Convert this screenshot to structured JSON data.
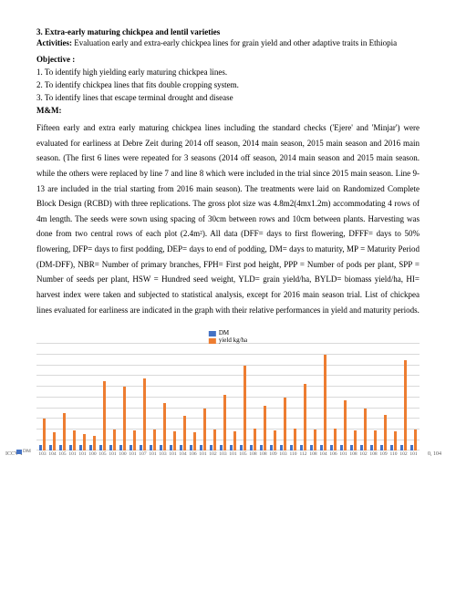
{
  "heading": "3. Extra-early maturing chickpea and lentil varieties",
  "activities_label": "Activities:",
  "activities_text": " Evaluation early and extra-early chickpea lines for grain yield and other adaptive traits in Ethiopia",
  "objective_title": "Objective :",
  "objectives": [
    "1. To identify high yielding early maturing chickpea lines.",
    "2. To identify chickpea lines that fits double cropping system.",
    "3. To identify lines that escape terminal drought and disease"
  ],
  "mm_title": "M&M:",
  "mm_body": "Fifteen early and extra early maturing chickpea lines including the standard checks ('Ejere' and 'Minjar') were evaluated for earliness at Debre Zeit during 2014 off season, 2014 main season, 2015 main season and 2016 main season. (The first 6 lines were repeated for 3 seasons (2014 off season, 2014 main season and 2015 main season. while the others were replaced by line 7 and line 8 which were included in the trial since 2015 main season. Line 9-13 are included in the trial starting from 2016 main season). The treatments were laid on Randomized Complete Block Design (RCBD) with three replications. The gross plot size was 4.8m2(4mx1.2m) accommodating 4 rows of 4m length. The seeds were sown using spacing of 30cm between rows and 10cm between plants. Harvesting was done from two central rows of each plot (2.4m²). All data (DFF= days to first flowering, DFFF= days to 50% flowering, DFP= days to first podding, DEP= days to end of podding, DM= days to maturity, MP = Maturity Period (DM-DFF), NBR= Number of primary branches, FPH= First pod height, PPP = Number of pods per plant, SPP = Number of seeds per plant, HSW = Hundred seed weight, YLD= grain yield/ha, BYLD= biomass yield/ha, HI= harvest index were taken and subjected to statistical analysis, except for 2016 main season trial. List of chickpea lines evaluated for earliness are indicated in the graph with their relative performances in yield and maturity periods.",
  "chart": {
    "type": "bar",
    "legend": {
      "dm": "DM",
      "yld": "yield kg/ha"
    },
    "colors": {
      "dm": "#4472c4",
      "yld": "#ed7d31",
      "grid": "#d9d9d9",
      "text": "#595959"
    },
    "ymax": 2000,
    "gridlines": 10,
    "series_pre_label": "ICCV-1",
    "series_post_label": "0, 104",
    "series_marker": "DM",
    "categories": [
      "103",
      "104",
      "105",
      "101",
      "101",
      "100",
      "105",
      "101",
      "100",
      "101",
      "107",
      "101",
      "103",
      "101",
      "104",
      "106",
      "101",
      "102",
      "103",
      "101",
      "105",
      "108",
      "108",
      "109",
      "103",
      "110",
      "112",
      "108",
      "104",
      "106",
      "101",
      "108",
      "102",
      "108",
      "109",
      "110",
      "102",
      "101"
    ],
    "dm": [
      103,
      104,
      105,
      101,
      101,
      100,
      105,
      101,
      100,
      101,
      107,
      101,
      103,
      101,
      104,
      106,
      101,
      102,
      103,
      101,
      105,
      108,
      108,
      109,
      103,
      110,
      112,
      108,
      104,
      106,
      101,
      108,
      102,
      108,
      109,
      110,
      102,
      101
    ],
    "yld": [
      600,
      350,
      700,
      380,
      320,
      280,
      1300,
      400,
      1200,
      380,
      1350,
      400,
      900,
      370,
      650,
      350,
      800,
      400,
      1050,
      370,
      1600,
      420,
      850,
      390,
      1000,
      410,
      1250,
      400,
      1800,
      420,
      950,
      390,
      800,
      380,
      680,
      370,
      1700,
      400
    ]
  }
}
